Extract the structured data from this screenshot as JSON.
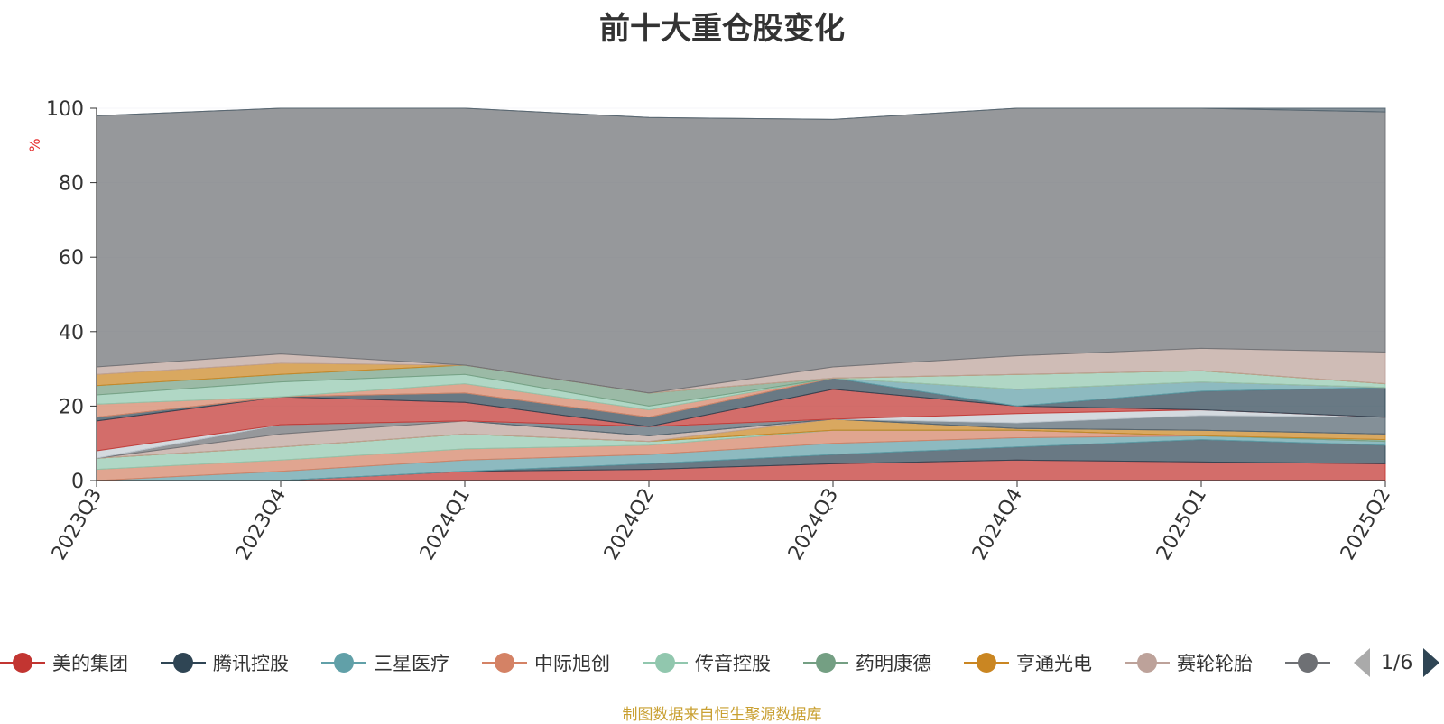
{
  "source_note": "制图数据来自恒生聚源数据库",
  "legend_page": "1/6",
  "colors": [
    "#c23531",
    "#2f4554",
    "#61a0a8",
    "#d48265",
    "#91c7ae",
    "#749f83",
    "#ca8622",
    "#bda29a",
    "#6e7074",
    "#546570",
    "#c4ccd3",
    "#c23531",
    "#2f4554",
    "#61a0a8",
    "#d48265",
    "#91c7ae",
    "#749f83",
    "#ca8622",
    "#bda29a",
    "#6e7074",
    "#546570"
  ],
  "chart_data": {
    "type": "area",
    "stacked": true,
    "title": "前十大重仓股变化",
    "ylabel": "%",
    "ylim": [
      0,
      100
    ],
    "yticks": [
      0,
      20,
      40,
      60,
      80,
      100
    ],
    "grid": true,
    "legend_position": "bottom",
    "categories": [
      "2023Q3",
      "2023Q4",
      "2024Q1",
      "2024Q2",
      "2024Q3",
      "2024Q4",
      "2025Q1",
      "2025Q2"
    ],
    "series": [
      {
        "name": "美的集团",
        "values": [
          0,
          0,
          2.5,
          3,
          4.5,
          5.5,
          5,
          4.5
        ]
      },
      {
        "name": "腾讯控股",
        "values": [
          0,
          0,
          0,
          1.5,
          2.5,
          3.5,
          6,
          5
        ]
      },
      {
        "name": "三星医疗",
        "values": [
          0,
          2.5,
          3,
          2.5,
          3,
          2.5,
          1,
          1
        ]
      },
      {
        "name": "中际旭创",
        "values": [
          3,
          3,
          3,
          2.5,
          3.5,
          2,
          0,
          0
        ]
      },
      {
        "name": "传音控股",
        "values": [
          3,
          3.5,
          4,
          1,
          0,
          0,
          0,
          0
        ]
      },
      {
        "name": "药明康德",
        "values": [
          0,
          0,
          0,
          0,
          0,
          0,
          0,
          0.5
        ]
      },
      {
        "name": "亨通光电",
        "values": [
          0,
          0,
          0,
          0,
          3,
          0.5,
          1.5,
          1.5
        ]
      },
      {
        "name": "赛轮轮胎",
        "values": [
          0,
          3.5,
          3.5,
          1.5,
          0,
          0,
          0,
          0
        ]
      },
      {
        "name": "",
        "values": [
          0,
          2.5,
          0,
          0,
          0,
          0,
          0,
          0
        ]
      },
      {
        "name": "",
        "values": [
          0,
          0,
          0,
          2.5,
          0,
          1.5,
          4,
          4.5
        ]
      },
      {
        "name": "",
        "values": [
          2,
          0,
          0,
          0,
          0,
          2.5,
          1.5,
          0
        ]
      },
      {
        "name": "",
        "values": [
          8,
          7.5,
          5,
          0,
          8,
          2,
          0,
          0
        ]
      },
      {
        "name": "",
        "values": [
          1,
          0,
          2.5,
          2.5,
          3,
          0,
          5,
          8
        ]
      },
      {
        "name": "",
        "values": [
          0,
          0,
          0,
          0,
          0,
          4.5,
          2.5,
          0
        ]
      },
      {
        "name": "",
        "values": [
          3.5,
          0,
          2.5,
          2,
          0,
          0,
          0,
          0
        ]
      },
      {
        "name": "",
        "values": [
          2.5,
          4,
          2.5,
          1,
          0,
          4,
          3,
          1
        ]
      },
      {
        "name": "",
        "values": [
          2.5,
          2,
          2.5,
          3.5,
          0,
          0,
          0,
          0
        ]
      },
      {
        "name": "",
        "values": [
          3,
          3,
          0,
          0,
          0,
          0,
          0,
          0
        ]
      },
      {
        "name": "",
        "values": [
          2,
          2.5,
          0,
          0,
          3,
          5,
          6,
          8.5
        ]
      },
      {
        "name": "",
        "values": [
          67.5,
          66,
          69,
          74,
          66.5,
          66.5,
          64.5,
          64.5
        ]
      },
      {
        "name": "",
        "values": [
          0,
          0,
          0,
          0,
          0,
          0,
          0,
          1
        ]
      }
    ]
  }
}
